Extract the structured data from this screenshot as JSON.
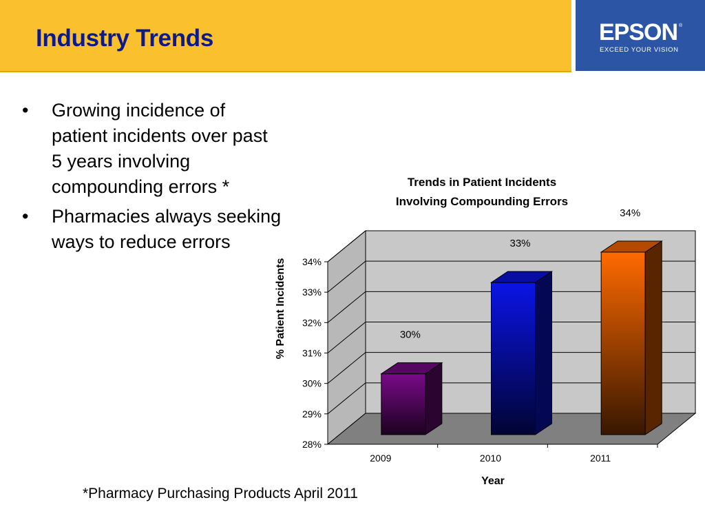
{
  "header": {
    "title": "Industry Trends",
    "bar_color": "#fbc02d",
    "title_color": "#0d1a8c"
  },
  "logo": {
    "word": "EPSON",
    "tagline": "EXCEED YOUR VISION",
    "bg_color": "#2c55a6"
  },
  "bullets": [
    {
      "text": "Growing incidence of patient incidents over past 5 years involving compounding errors *"
    },
    {
      "text": "Pharmacies always seeking ways to reduce errors"
    }
  ],
  "footnote": "*Pharmacy Purchasing Products April 2011",
  "chart_data": {
    "type": "bar",
    "title": "Trends in Patient Incidents Involving Compounding Errors",
    "title_lines": [
      "Trends in Patient Incidents",
      "Involving Compounding Errors"
    ],
    "xlabel": "Year",
    "ylabel": "% Patient Incidents",
    "categories": [
      "2009",
      "2010",
      "2011"
    ],
    "values": [
      30,
      33,
      34
    ],
    "data_labels": [
      "30%",
      "33%",
      "34%"
    ],
    "ylim": [
      28,
      34
    ],
    "yticks": [
      "28%",
      "29%",
      "30%",
      "31%",
      "32%",
      "33%",
      "34%"
    ],
    "bar_colors": [
      "#7a0a8a",
      "#0a14e6",
      "#ff6a00"
    ],
    "grid": true,
    "style": "3d-column"
  }
}
